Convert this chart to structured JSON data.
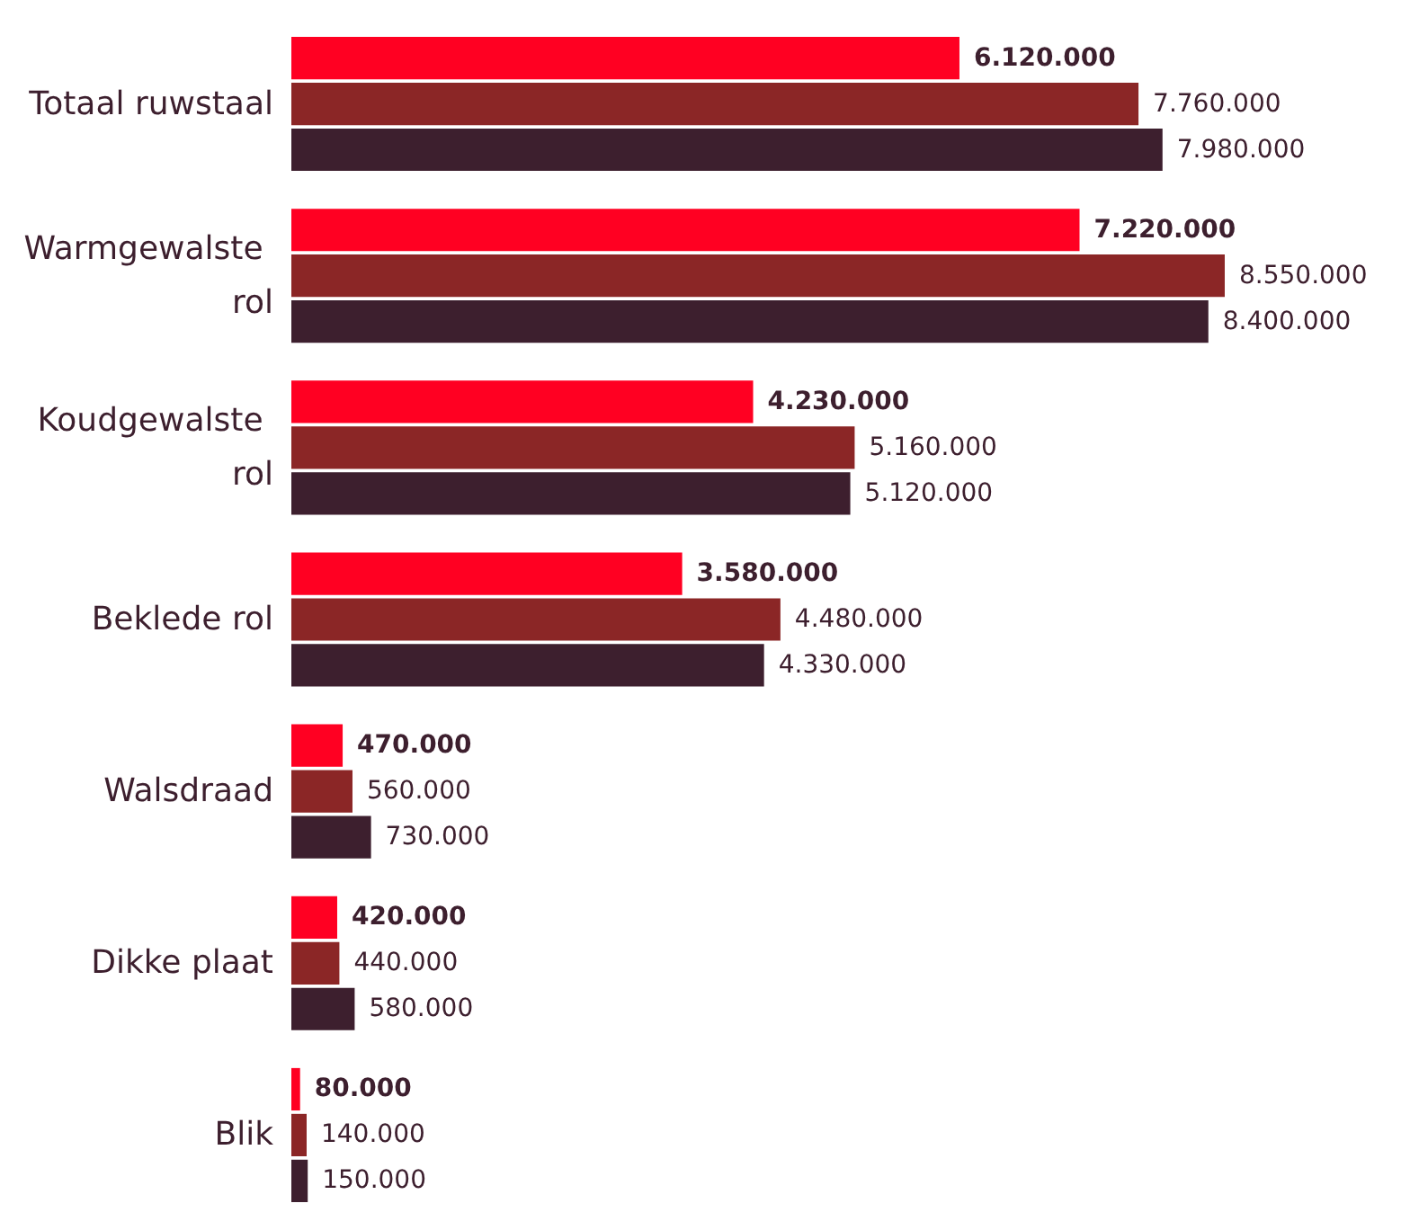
{
  "chart_data": {
    "type": "bar",
    "orientation": "horizontal",
    "categories": [
      "Totaal ruwstaal",
      "Warmgewalste rol",
      "Koudgewalste rol",
      "Beklede rol",
      "Walsdraad",
      "Dikke plaat",
      "Blik"
    ],
    "series": [
      {
        "color": "#ff0022",
        "values": [
          6120000,
          7220000,
          4230000,
          3580000,
          470000,
          420000,
          80000
        ],
        "value_labels": [
          "6.120.000",
          "7.220.000",
          "4.230.000",
          "3.580.000",
          "470.000",
          "420.000",
          "80.000"
        ]
      },
      {
        "color": "#8b2626",
        "values": [
          7760000,
          8550000,
          5160000,
          4480000,
          560000,
          440000,
          140000
        ],
        "value_labels": [
          "7.760.000",
          "8.550.000",
          "5.160.000",
          "4.480.000",
          "560.000",
          "440.000",
          "140.000"
        ]
      },
      {
        "color": "#3d1f2e",
        "values": [
          7980000,
          8400000,
          5120000,
          4330000,
          730000,
          580000,
          150000
        ],
        "value_labels": [
          "7.980.000",
          "8.400.000",
          "5.120.000",
          "4.330.000",
          "730.000",
          "580.000",
          "150.000"
        ]
      }
    ]
  }
}
